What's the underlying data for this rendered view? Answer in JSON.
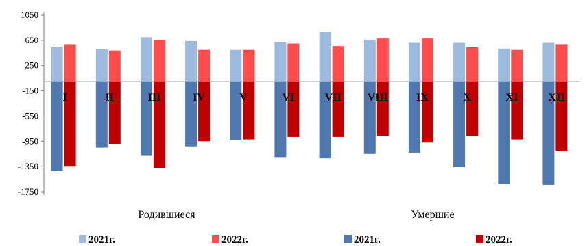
{
  "chart_data": {
    "type": "bar",
    "categories": [
      "I",
      "II",
      "III",
      "IV",
      "V",
      "VI",
      "VII",
      "VIII",
      "IX",
      "X",
      "XI",
      "XII"
    ],
    "yticks": [
      1050,
      650,
      250,
      -150,
      -550,
      -950,
      -1350,
      -1750
    ],
    "ylim": [
      -1750,
      1050
    ],
    "group_labels": [
      "Родившиеся",
      "Умершие"
    ],
    "series": [
      {
        "name": "2021г.",
        "group": "Родившиеся",
        "color": "#9DBBDF",
        "values": [
          540,
          510,
          700,
          640,
          500,
          620,
          780,
          660,
          610,
          610,
          520,
          610
        ]
      },
      {
        "name": "2022г.",
        "group": "Родившиеся",
        "color": "#FF4D4D",
        "values": [
          590,
          490,
          650,
          500,
          500,
          600,
          560,
          680,
          680,
          540,
          500,
          590
        ]
      },
      {
        "name": "2021г.",
        "group": "Умершие",
        "color": "#4F79AE",
        "values": [
          -1420,
          -1050,
          -1170,
          -1030,
          -930,
          -1200,
          -1220,
          -1150,
          -1130,
          -1350,
          -1630,
          -1640
        ]
      },
      {
        "name": "2022г.",
        "group": "Умершие",
        "color": "#C00000",
        "values": [
          -1340,
          -990,
          -1370,
          -950,
          -920,
          -880,
          -880,
          -870,
          -960,
          -870,
          -920,
          -1100
        ]
      }
    ]
  }
}
